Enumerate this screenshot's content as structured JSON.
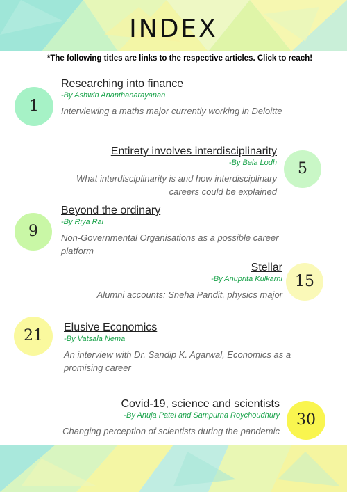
{
  "header": {
    "title": "INDEX",
    "subtitle": "*The following titles are links to the respective articles. Click to reach!"
  },
  "colors": {
    "green_circle": "#a6f2c6",
    "yellow_circle": "#faf99e",
    "bright_yellow_circle": "#f9f54f",
    "author_text": "#19a34a"
  },
  "articles": [
    {
      "page": "1",
      "title": "Researching into finance",
      "author": "-By Ashwin Ananthanarayanan",
      "description": "Interviewing a maths major currently working in Deloitte"
    },
    {
      "page": "5",
      "title": "Entirety involves interdisciplinarity",
      "author": "-By Bela Lodh",
      "description": "What interdisciplinarity is and how interdisciplinary careers could be explained"
    },
    {
      "page": "9",
      "title": "Beyond the ordinary",
      "author": "-By Riya Rai",
      "description": "Non-Governmental Organisations as a possible career platform"
    },
    {
      "page": "15",
      "title": "Stellar",
      "author": "-By Anuprita Kulkarni",
      "description": "Alumni accounts: Sneha Pandit, physics major"
    },
    {
      "page": "21",
      "title": "Elusive Economics",
      "author": "-By Vatsala Nema",
      "description": "An interview with Dr. Sandip K. Agarwal, Economics as a promising career"
    },
    {
      "page": "30",
      "title": "Covid-19, science and scientists",
      "author": "-By Anuja Patel and Sampurna Roychoudhury",
      "description": "Changing perception of scientists during the pandemic"
    }
  ]
}
